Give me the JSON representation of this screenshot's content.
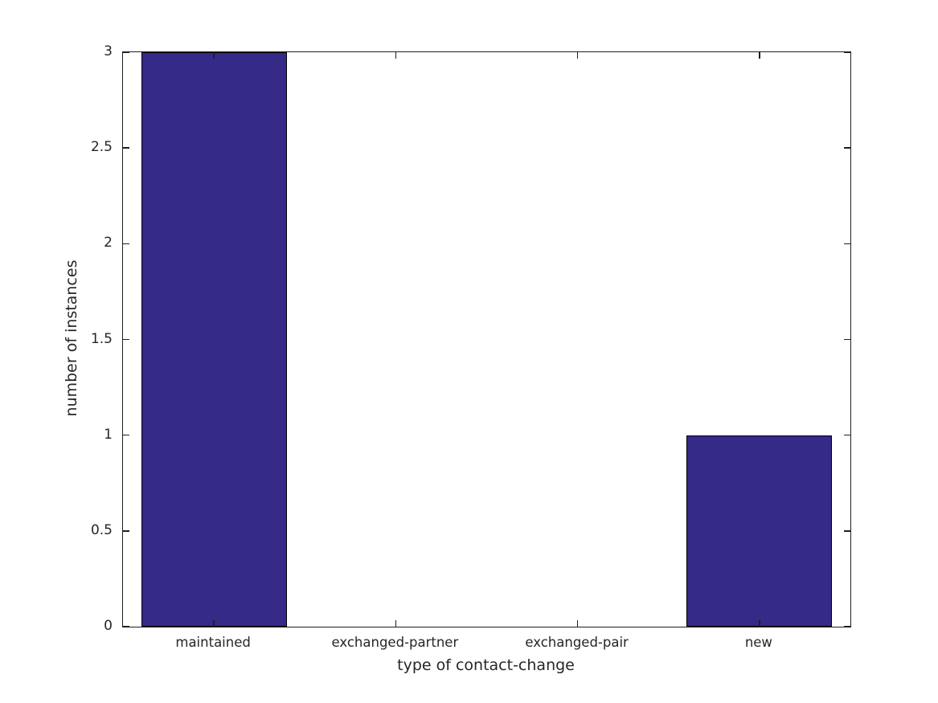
{
  "chart_data": {
    "type": "bar",
    "title": "",
    "categories": [
      "maintained",
      "exchanged-partner",
      "exchanged-pair",
      "new"
    ],
    "values": [
      3,
      0,
      0,
      1
    ],
    "xlabel": "type of contact-change",
    "ylabel": "number of instances",
    "ylim": [
      0,
      3
    ],
    "yticks": [
      0,
      0.5,
      1,
      1.5,
      2,
      2.5,
      3
    ],
    "ytick_labels": [
      "0",
      "0.5",
      "1",
      "1.5",
      "2",
      "2.5",
      "3"
    ],
    "bar_width_ratio": 0.8,
    "bar_color": "#352a87",
    "bar_edge_color": "#000000",
    "axis_color": "#1f1f1f",
    "text_color": "#262626",
    "grid": false,
    "legend_position": "none",
    "ticks_direction": "in",
    "box": true
  }
}
